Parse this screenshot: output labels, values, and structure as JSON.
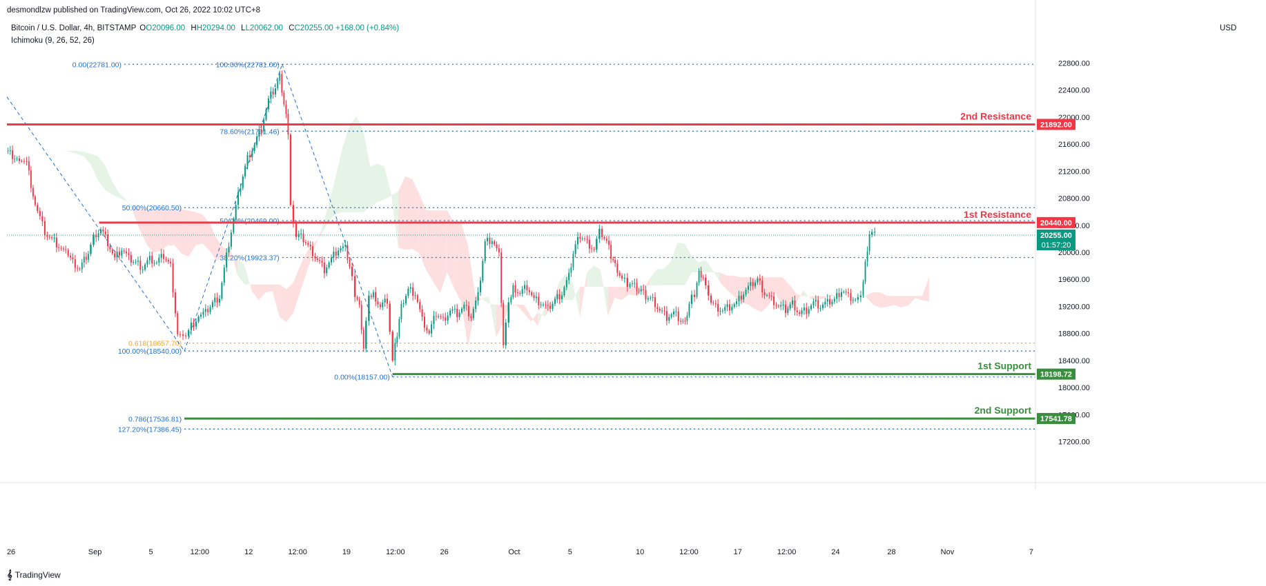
{
  "header": {
    "published": "desmondlzw published on TradingView.com, Oct 26, 2022 10:02 UTC+8",
    "symbol": "Bitcoin / U.S. Dollar, 4h, BITSTAMP",
    "open": "O20096.00",
    "high": "H20294.00",
    "low": "L20062.00",
    "close": "C20255.00",
    "change": "+168.00 (+0.84%)",
    "indicator": "Ichimoku (9, 26, 52, 26)",
    "currency": "USD"
  },
  "footer": {
    "brand": "TradingView",
    "logo": "tradingview-logo-icon"
  },
  "colors": {
    "up": "#089981",
    "down": "#f23645",
    "resistance": "#f23645",
    "support": "#388e3c",
    "fib": "#1e6fd1",
    "fib_orange": "#f5a623",
    "cloud_red": "#fdd9d9",
    "cloud_green": "#e2f1e3"
  },
  "chart_data": {
    "type": "line",
    "title": "Bitcoin / U.S. Dollar, 4h, BITSTAMP",
    "ylabel": "USD",
    "ylim": [
      16900,
      23100
    ],
    "y_ticks": [
      "22800.00",
      "22400.00",
      "22000.00",
      "21600.00",
      "21200.00",
      "20800.00",
      "20400.00",
      "20000.00",
      "19600.00",
      "19200.00",
      "18800.00",
      "18400.00",
      "18000.00",
      "17600.00",
      "17200.00"
    ],
    "x_ticks": [
      "26",
      "Sep",
      "5",
      "12:00",
      "12",
      "12:00",
      "19",
      "12:00",
      "26",
      "Oct",
      "5",
      "10",
      "12:00",
      "17",
      "12:00",
      "24",
      "28",
      "Nov",
      "7"
    ],
    "x_tick_days": [
      -6,
      0,
      4,
      7.5,
      11,
      14.5,
      18,
      21.5,
      25,
      30,
      34,
      39,
      42.5,
      46,
      49.5,
      53,
      57,
      61,
      67
    ],
    "x_start_day": -6.3,
    "x_end_day": 67.3,
    "series": [
      {
        "values": [
          [
            -6.3,
            21500
          ],
          [
            -5.5,
            21400
          ],
          [
            -4.8,
            21300
          ],
          [
            -4.2,
            20700
          ],
          [
            -3.5,
            20300
          ],
          [
            -3.0,
            20200
          ],
          [
            -2.0,
            20000
          ],
          [
            -1.5,
            19850
          ],
          [
            -1.0,
            19750
          ],
          [
            -0.4,
            20000
          ],
          [
            0.0,
            20250
          ],
          [
            0.5,
            20350
          ],
          [
            1.0,
            20150
          ],
          [
            1.5,
            19900
          ],
          [
            2.0,
            20050
          ],
          [
            2.5,
            19900
          ],
          [
            3.0,
            19850
          ],
          [
            3.5,
            19780
          ],
          [
            4.0,
            19900
          ],
          [
            4.5,
            19850
          ],
          [
            5.0,
            19950
          ],
          [
            5.5,
            19800
          ],
          [
            6.0,
            18800
          ],
          [
            6.4,
            18720
          ],
          [
            6.8,
            18850
          ],
          [
            7.5,
            19050
          ],
          [
            8.0,
            19100
          ],
          [
            8.5,
            19250
          ],
          [
            9.0,
            19350
          ],
          [
            9.5,
            19950
          ],
          [
            10.0,
            20500
          ],
          [
            10.5,
            21000
          ],
          [
            11.0,
            21400
          ],
          [
            11.5,
            21600
          ],
          [
            12.0,
            21850
          ],
          [
            12.5,
            22250
          ],
          [
            13.0,
            22450
          ],
          [
            13.3,
            22600
          ],
          [
            13.6,
            22200
          ],
          [
            13.9,
            21800
          ],
          [
            14.1,
            20700
          ],
          [
            14.5,
            20250
          ],
          [
            15.0,
            20200
          ],
          [
            15.5,
            20050
          ],
          [
            16.0,
            19900
          ],
          [
            16.5,
            19750
          ],
          [
            17.0,
            19900
          ],
          [
            17.5,
            20050
          ],
          [
            18.0,
            20050
          ],
          [
            18.3,
            19800
          ],
          [
            18.7,
            19400
          ],
          [
            19.0,
            19200
          ],
          [
            19.3,
            18600
          ],
          [
            19.7,
            19300
          ],
          [
            20.0,
            19400
          ],
          [
            20.5,
            19200
          ],
          [
            21.0,
            19300
          ],
          [
            21.4,
            18400
          ],
          [
            21.7,
            18800
          ],
          [
            22.0,
            19200
          ],
          [
            22.5,
            19450
          ],
          [
            23.0,
            19400
          ],
          [
            23.5,
            19000
          ],
          [
            24.0,
            18800
          ],
          [
            24.5,
            19100
          ],
          [
            25.0,
            19000
          ],
          [
            25.5,
            19150
          ],
          [
            26.0,
            19100
          ],
          [
            26.5,
            19200
          ],
          [
            27.0,
            19050
          ],
          [
            27.5,
            19350
          ],
          [
            28.0,
            20150
          ],
          [
            28.5,
            20200
          ],
          [
            29.0,
            19950
          ],
          [
            29.3,
            18650
          ],
          [
            29.7,
            19200
          ],
          [
            30.0,
            19500
          ],
          [
            30.5,
            19400
          ],
          [
            31.0,
            19500
          ],
          [
            31.5,
            19300
          ],
          [
            32.0,
            19250
          ],
          [
            32.5,
            19150
          ],
          [
            33.0,
            19300
          ],
          [
            33.5,
            19400
          ],
          [
            34.0,
            19650
          ],
          [
            34.3,
            20000
          ],
          [
            34.8,
            20250
          ],
          [
            35.3,
            20150
          ],
          [
            35.8,
            20050
          ],
          [
            36.2,
            20300
          ],
          [
            36.7,
            20150
          ],
          [
            37.0,
            19950
          ],
          [
            37.3,
            19800
          ],
          [
            37.8,
            19600
          ],
          [
            38.2,
            19550
          ],
          [
            38.7,
            19500
          ],
          [
            39.0,
            19450
          ],
          [
            39.5,
            19350
          ],
          [
            40.0,
            19300
          ],
          [
            40.5,
            19150
          ],
          [
            41.0,
            19050
          ],
          [
            41.5,
            19100
          ],
          [
            42.0,
            19000
          ],
          [
            42.3,
            18950
          ],
          [
            42.6,
            19250
          ],
          [
            43.0,
            19400
          ],
          [
            43.3,
            19700
          ],
          [
            43.6,
            19650
          ],
          [
            44.0,
            19300
          ],
          [
            44.5,
            19200
          ],
          [
            45.0,
            19150
          ],
          [
            45.5,
            19200
          ],
          [
            46.0,
            19250
          ],
          [
            46.5,
            19400
          ],
          [
            47.0,
            19500
          ],
          [
            47.5,
            19600
          ],
          [
            48.0,
            19400
          ],
          [
            48.5,
            19300
          ],
          [
            49.0,
            19200
          ],
          [
            49.5,
            19150
          ],
          [
            50.0,
            19250
          ],
          [
            50.5,
            19100
          ],
          [
            51.0,
            19150
          ],
          [
            51.5,
            19250
          ],
          [
            52.0,
            19200
          ],
          [
            52.5,
            19250
          ],
          [
            53.0,
            19300
          ],
          [
            53.5,
            19450
          ],
          [
            54.0,
            19350
          ],
          [
            54.5,
            19300
          ],
          [
            54.9,
            19300
          ],
          [
            55.2,
            19850
          ],
          [
            55.5,
            20300
          ],
          [
            55.9,
            20255
          ]
        ],
        "color": "#131722"
      }
    ],
    "annotations": {
      "resistance_2": {
        "label": "2nd Resistance",
        "price": "21892.00",
        "value": 21892,
        "start_day": -6.3
      },
      "resistance_1": {
        "label": "1st Resistance",
        "price": "20440.00",
        "value": 20440,
        "start_day": 0.3
      },
      "support_1": {
        "label": "1st Support",
        "price": "18198.72",
        "value": 18198.72,
        "start_day": 21.3
      },
      "support_2": {
        "label": "2nd Support",
        "price": "17541.78",
        "value": 17541.78,
        "start_day": 6.4
      },
      "current_price": {
        "price": "20255.00",
        "countdown": "01:57:20",
        "value": 20255
      },
      "fib_levels": [
        {
          "label": "0.00(22781.00)",
          "value": 22781,
          "color": "#1e6fd1",
          "end_day": 13.4
        },
        {
          "label": "100.00%(22781.00)",
          "value": 22781,
          "color": "#1e6fd1",
          "start_day": 13.4
        },
        {
          "label": "78.60%(21791.46)",
          "value": 21791.46,
          "color": "#1e6fd1",
          "start_day": 13.4
        },
        {
          "label": "50.00%(20660.50)",
          "value": 20660.5,
          "color": "#1e6fd1",
          "start_day": 6.4
        },
        {
          "label": "50.00%(20469.00)",
          "value": 20469,
          "color": "#1e6fd1",
          "start_day": 13.4
        },
        {
          "label": "38.20%(19923.37)",
          "value": 19923.37,
          "color": "#1e6fd1",
          "start_day": 13.4
        },
        {
          "label": "0.618(18657.70)",
          "value": 18657.7,
          "color": "#f5a623",
          "start_day": 6.4
        },
        {
          "label": "100.00%(18540.00)",
          "value": 18540,
          "color": "#1e6fd1",
          "start_day": 6.4
        },
        {
          "label": "0.00%(18157.00)",
          "value": 18157,
          "color": "#1e6fd1",
          "start_day": 21.3
        },
        {
          "label": "0.786(17536.81)",
          "value": 17536.81,
          "color": "#1e6fd1",
          "start_day": 6.4
        },
        {
          "label": "127.20%(17386.45)",
          "value": 17386.45,
          "color": "#1e6fd1",
          "start_day": 6.4
        }
      ],
      "trend_lines": [
        [
          [
            -6.3,
            22300
          ],
          [
            6.4,
            18540
          ]
        ],
        [
          [
            6.4,
            18540
          ],
          [
            13.4,
            22781
          ]
        ],
        [
          [
            13.4,
            22781
          ],
          [
            21.3,
            18157
          ]
        ]
      ]
    }
  }
}
